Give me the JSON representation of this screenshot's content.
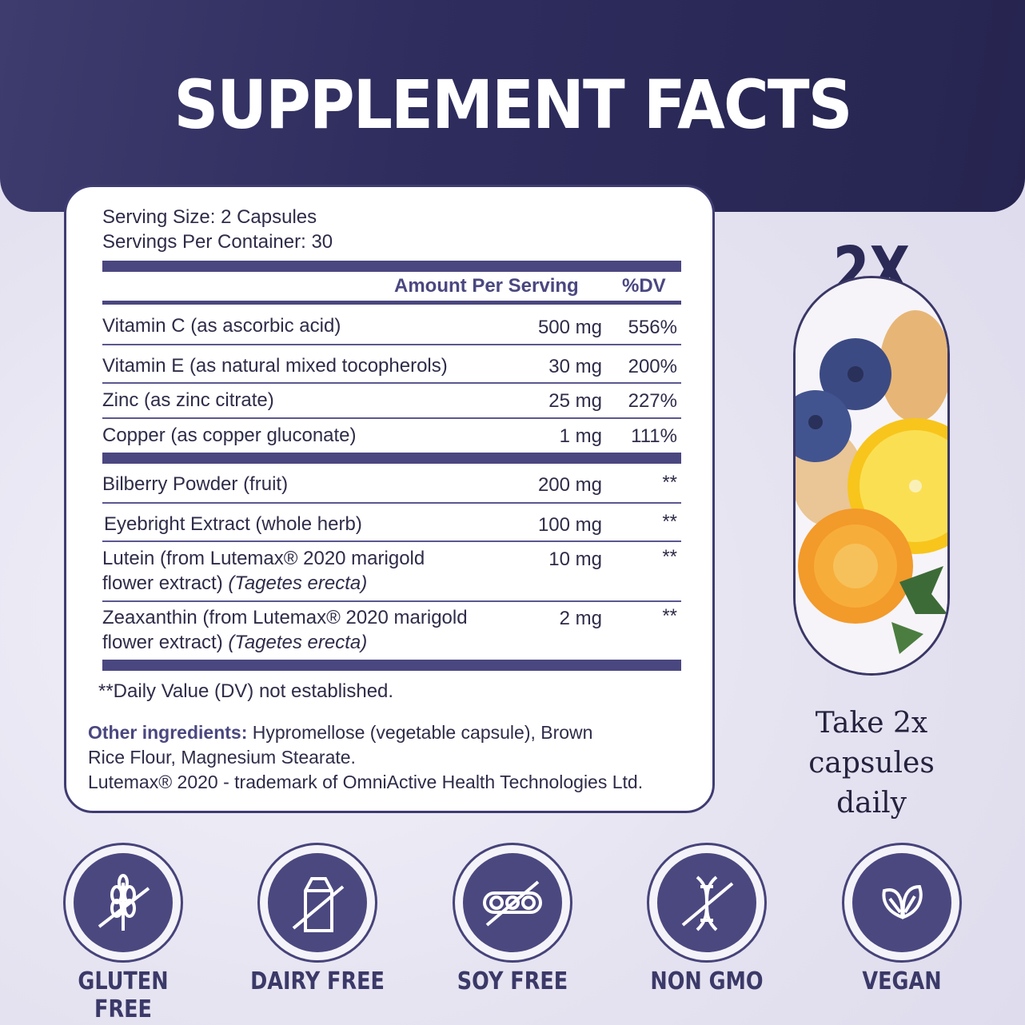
{
  "header": {
    "title": "SUPPLEMENT FACTS"
  },
  "facts": {
    "serving_size": "Serving Size: 2 Capsules",
    "servings_per_container": "Servings Per Container: 30",
    "col_amount": "Amount Per Serving",
    "col_dv": "%DV",
    "rows": [
      {
        "name": "Vitamin C (as ascorbic acid)",
        "amount": "500 mg",
        "dv": "556%"
      },
      {
        "name": "Vitamin E (as natural mixed tocopherols)",
        "amount": "30 mg",
        "dv": "200%"
      },
      {
        "name": "Zinc (as zinc citrate)",
        "amount": "25 mg",
        "dv": "227%"
      },
      {
        "name": "Copper (as copper gluconate)",
        "amount": "1 mg",
        "dv": "111%"
      },
      {
        "name": "Bilberry Powder (fruit)",
        "amount": "200 mg",
        "dv": "**"
      },
      {
        "name": "Eyebright Extract (whole herb)",
        "amount": "100 mg",
        "dv": "**"
      },
      {
        "name1": "Lutein (from Lutemax® 2020 marigold",
        "name2": "flower extract)",
        "name2_italic": "(Tagetes erecta)",
        "amount": "10 mg",
        "dv": "**"
      },
      {
        "name1": "Zeaxanthin (from Lutemax® 2020 marigold",
        "name2": "flower extract)",
        "name2_italic": "(Tagetes erecta)",
        "amount": "2 mg",
        "dv": "**"
      }
    ],
    "footnote": "**Daily Value (DV) not established.",
    "other_label": "Other ingredients:",
    "other_line1": "Hypromellose (vegetable capsule), Brown",
    "other_line2": "Rice Flour, Magnesium Stearate.",
    "trademark": "Lutemax® 2020 - trademark of OmniActive Health Technologies Ltd."
  },
  "dosage": {
    "multiplier": "2X",
    "line1": "Take 2x",
    "line2": "capsules",
    "line3": "daily"
  },
  "badges": [
    {
      "label": "GLUTEN FREE",
      "icon": "wheat-crossed-icon"
    },
    {
      "label": "DAIRY FREE",
      "icon": "milk-carton-crossed-icon"
    },
    {
      "label": "SOY FREE",
      "icon": "soybean-crossed-icon"
    },
    {
      "label": "NON GMO",
      "icon": "dna-crossed-icon"
    },
    {
      "label": "VEGAN",
      "icon": "leaves-icon"
    }
  ],
  "colors": {
    "brand": "#2f2d5e",
    "accent": "#4b4880",
    "text": "#2e2c48"
  }
}
